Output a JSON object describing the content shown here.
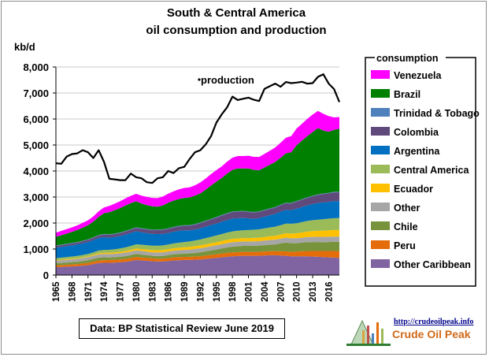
{
  "chart_data": {
    "type": "area",
    "title": [
      "South & Central America",
      "oil consumption and production"
    ],
    "ylabel": "kb/d",
    "ylim": [
      0,
      8000
    ],
    "yticks": [
      0,
      1000,
      2000,
      3000,
      4000,
      5000,
      6000,
      7000,
      8000
    ],
    "ytick_labels": [
      "0",
      "1,000",
      "2,000",
      "3,000",
      "4,000",
      "5,000",
      "6,000",
      "7,000",
      "8,000"
    ],
    "xlim": [
      1965,
      2018
    ],
    "xticks": [
      1965,
      1968,
      1971,
      1974,
      1977,
      1980,
      1983,
      1986,
      1989,
      1992,
      1995,
      1998,
      2001,
      2004,
      2007,
      2010,
      2013,
      2016
    ],
    "grid": true,
    "stacked": true,
    "legend_title": "consumption",
    "legend_position": "right",
    "x": [
      1965,
      1966,
      1967,
      1968,
      1969,
      1970,
      1971,
      1972,
      1973,
      1974,
      1975,
      1976,
      1977,
      1978,
      1979,
      1980,
      1981,
      1982,
      1983,
      1984,
      1985,
      1986,
      1987,
      1988,
      1989,
      1990,
      1991,
      1992,
      1993,
      1994,
      1995,
      1996,
      1997,
      1998,
      1999,
      2000,
      2001,
      2002,
      2003,
      2004,
      2005,
      2006,
      2007,
      2008,
      2009,
      2010,
      2011,
      2012,
      2013,
      2014,
      2015,
      2016,
      2017,
      2018
    ],
    "series": [
      {
        "name": "Other Caribbean",
        "color": "#8064a2",
        "values": [
          300,
          310,
          320,
          330,
          340,
          360,
          380,
          420,
          460,
          470,
          470,
          480,
          490,
          510,
          540,
          580,
          560,
          550,
          530,
          520,
          520,
          540,
          560,
          570,
          580,
          580,
          590,
          600,
          620,
          640,
          660,
          680,
          700,
          720,
          730,
          740,
          740,
          740,
          740,
          750,
          760,
          760,
          750,
          740,
          720,
          720,
          720,
          720,
          710,
          700,
          690,
          680,
          670,
          660
        ]
      },
      {
        "name": "Peru",
        "color": "#e46c0a",
        "values": [
          70,
          72,
          75,
          78,
          80,
          85,
          88,
          92,
          98,
          102,
          105,
          108,
          110,
          112,
          114,
          116,
          116,
          114,
          110,
          110,
          112,
          115,
          118,
          118,
          118,
          120,
          122,
          125,
          130,
          135,
          140,
          145,
          150,
          150,
          150,
          150,
          150,
          150,
          152,
          155,
          158,
          160,
          165,
          170,
          175,
          185,
          195,
          205,
          215,
          225,
          235,
          245,
          255,
          260
        ]
      },
      {
        "name": "Chile",
        "color": "#77933c",
        "values": [
          80,
          82,
          85,
          88,
          90,
          95,
          100,
          105,
          110,
          110,
          100,
          98,
          100,
          105,
          110,
          115,
          110,
          100,
          98,
          100,
          105,
          110,
          115,
          120,
          125,
          130,
          140,
          150,
          160,
          170,
          180,
          195,
          210,
          220,
          225,
          230,
          230,
          235,
          240,
          245,
          250,
          260,
          300,
          340,
          330,
          320,
          330,
          340,
          345,
          345,
          340,
          345,
          350,
          355
        ]
      },
      {
        "name": "Other",
        "color": "#a6a6a6",
        "values": [
          100,
          102,
          105,
          108,
          110,
          115,
          120,
          125,
          130,
          130,
          130,
          132,
          135,
          138,
          140,
          142,
          140,
          138,
          136,
          136,
          138,
          140,
          142,
          145,
          148,
          150,
          152,
          155,
          158,
          160,
          162,
          165,
          168,
          170,
          170,
          170,
          170,
          170,
          172,
          175,
          178,
          180,
          182,
          185,
          188,
          190,
          192,
          195,
          198,
          200,
          202,
          204,
          205,
          206
        ]
      },
      {
        "name": "Ecuador",
        "color": "#ffc000",
        "values": [
          20,
          21,
          22,
          23,
          24,
          25,
          27,
          30,
          35,
          40,
          45,
          50,
          55,
          60,
          65,
          70,
          75,
          80,
          85,
          88,
          90,
          92,
          95,
          98,
          100,
          102,
          105,
          108,
          112,
          115,
          118,
          122,
          126,
          130,
          130,
          130,
          130,
          132,
          135,
          140,
          145,
          150,
          160,
          170,
          180,
          190,
          200,
          210,
          220,
          230,
          240,
          245,
          250,
          252
        ]
      },
      {
        "name": "Central America",
        "color": "#9bbb59",
        "values": [
          80,
          82,
          84,
          86,
          88,
          90,
          95,
          100,
          110,
          115,
          120,
          125,
          130,
          140,
          150,
          160,
          165,
          168,
          170,
          172,
          175,
          180,
          185,
          190,
          200,
          210,
          220,
          230,
          240,
          250,
          260,
          270,
          280,
          290,
          300,
          305,
          310,
          315,
          320,
          330,
          340,
          350,
          360,
          370,
          380,
          390,
          400,
          410,
          420,
          430,
          440,
          450,
          455,
          460
        ]
      },
      {
        "name": "Argentina",
        "color": "#0070c0",
        "values": [
          400,
          410,
          420,
          430,
          440,
          450,
          460,
          470,
          480,
          490,
          470,
          470,
          480,
          490,
          500,
          500,
          480,
          460,
          450,
          450,
          440,
          440,
          450,
          460,
          450,
          430,
          420,
          430,
          440,
          450,
          460,
          470,
          480,
          490,
          480,
          470,
          450,
          420,
          430,
          450,
          470,
          490,
          520,
          530,
          520,
          560,
          580,
          600,
          620,
          640,
          650,
          640,
          660,
          650
        ]
      },
      {
        "name": "Colombia",
        "color": "#604a7b",
        "values": [
          70,
          72,
          74,
          76,
          78,
          80,
          85,
          90,
          95,
          100,
          105,
          110,
          115,
          120,
          125,
          130,
          135,
          140,
          145,
          150,
          155,
          160,
          165,
          170,
          175,
          180,
          190,
          200,
          210,
          220,
          230,
          240,
          245,
          250,
          250,
          250,
          245,
          240,
          240,
          240,
          240,
          245,
          250,
          255,
          260,
          270,
          280,
          290,
          300,
          310,
          320,
          330,
          335,
          340
        ]
      },
      {
        "name": "Trinidad & Tobago",
        "color": "#4f81bd",
        "values": [
          20,
          20,
          20,
          20,
          20,
          20,
          20,
          22,
          22,
          22,
          22,
          22,
          22,
          22,
          22,
          22,
          22,
          22,
          22,
          22,
          22,
          22,
          22,
          22,
          22,
          22,
          22,
          22,
          22,
          22,
          22,
          22,
          22,
          22,
          22,
          22,
          22,
          22,
          22,
          22,
          22,
          22,
          22,
          22,
          22,
          22,
          22,
          22,
          22,
          22,
          22,
          22,
          22,
          22
        ]
      },
      {
        "name": "Brazil",
        "color": "#008000",
        "values": [
          330,
          360,
          390,
          420,
          460,
          500,
          540,
          600,
          700,
          800,
          850,
          900,
          940,
          980,
          1000,
          1000,
          950,
          920,
          900,
          880,
          920,
          980,
          1010,
          1030,
          1050,
          1060,
          1090,
          1120,
          1190,
          1280,
          1360,
          1420,
          1520,
          1600,
          1640,
          1630,
          1650,
          1620,
          1580,
          1630,
          1680,
          1730,
          1800,
          1900,
          1950,
          2150,
          2250,
          2350,
          2450,
          2550,
          2420,
          2350,
          2380,
          2420
        ]
      },
      {
        "name": "Venezuela",
        "color": "#ff00ff",
        "values": [
          160,
          165,
          170,
          175,
          180,
          185,
          190,
          200,
          210,
          220,
          240,
          250,
          260,
          270,
          280,
          290,
          300,
          310,
          320,
          330,
          340,
          350,
          360,
          370,
          380,
          390,
          400,
          420,
          430,
          440,
          440,
          450,
          460,
          470,
          480,
          480,
          490,
          500,
          510,
          520,
          540,
          560,
          580,
          600,
          620,
          640,
          650,
          660,
          670,
          660,
          640,
          600,
          480,
          450
        ]
      }
    ],
    "production": {
      "name": "production",
      "color": "#000000",
      "values": [
        4300,
        4280,
        4550,
        4650,
        4680,
        4800,
        4720,
        4500,
        4800,
        4350,
        3700,
        3680,
        3650,
        3650,
        3900,
        3760,
        3720,
        3570,
        3540,
        3720,
        3760,
        4000,
        3920,
        4110,
        4160,
        4460,
        4720,
        4800,
        5020,
        5340,
        5860,
        6180,
        6450,
        6860,
        6730,
        6780,
        6820,
        6740,
        6690,
        7160,
        7260,
        7360,
        7240,
        7420,
        7380,
        7400,
        7430,
        7360,
        7380,
        7620,
        7720,
        7360,
        7150,
        6650
      ]
    }
  },
  "source_box": "Data: BP Statistical Review June 2019",
  "logo": {
    "url": "http://crudeoilpeak.info",
    "name": "Crude Oil Peak"
  }
}
